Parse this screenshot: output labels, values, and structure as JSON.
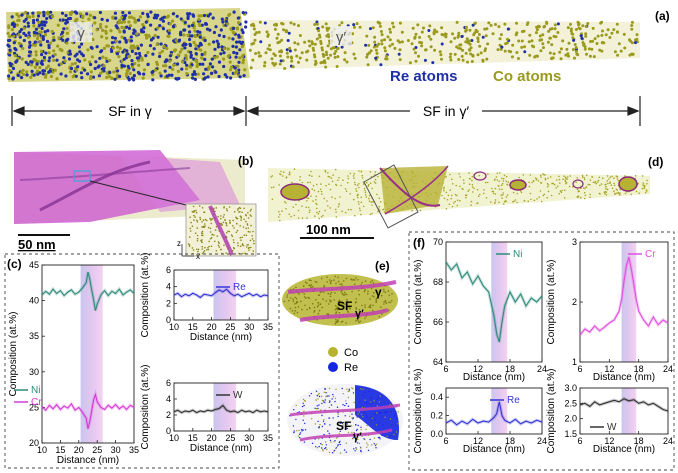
{
  "panel_labels": {
    "a": "(a)",
    "b": "(b)",
    "c": "(c)",
    "d": "(d)",
    "e": "(e)",
    "f": "(f)"
  },
  "panel_a": {
    "gamma_label": "γ",
    "gamma_prime_label": "γ′",
    "re_atoms_label": "Re atoms",
    "co_atoms_label": "Co atoms",
    "sf_gamma": "SF in γ",
    "sf_gamma_prime": "SF in γ′",
    "colors": {
      "re": "#1f2fa8",
      "co": "#9a9a1e"
    }
  },
  "panel_b": {
    "scale_bar": "50 nm",
    "axis_z": "z",
    "axis_x": "x"
  },
  "panel_d": {
    "scale_bar": "100 nm"
  },
  "panel_e": {
    "gamma": "γ",
    "sf": "SF",
    "gamma_prime": "γ′",
    "legend_co": "Co",
    "legend_re": "Re",
    "colors": {
      "co": "#9a9a1e",
      "re": "#1426e0",
      "sf": "#c13fb4"
    }
  },
  "chart_data": [
    {
      "id": "c-left",
      "type": "line",
      "xlabel": "Distance (nm)",
      "ylabel": "Composition (at.%)",
      "xlim": [
        10,
        35
      ],
      "ylim": [
        20,
        45
      ],
      "xticks": [
        10,
        15,
        20,
        25,
        30,
        35
      ],
      "yticks": [
        20,
        25,
        30,
        35,
        40,
        45
      ],
      "band": [
        20.5,
        26.5
      ],
      "series": [
        {
          "name": "Ni",
          "color": "#2e8b7a",
          "x": [
            10,
            11,
            12,
            13,
            14,
            15,
            16,
            17,
            18,
            19,
            20,
            21,
            22,
            22.5,
            23,
            23.5,
            24,
            24.5,
            25,
            26,
            27,
            28,
            29,
            30,
            31,
            32,
            33,
            34,
            35
          ],
          "y": [
            40.8,
            41.3,
            40.9,
            41.6,
            41.0,
            41.4,
            40.7,
            41.2,
            41.5,
            40.9,
            41.2,
            41.8,
            42.5,
            44.0,
            43.0,
            41.5,
            40.2,
            38.6,
            39.5,
            40.8,
            41.4,
            40.7,
            41.3,
            41.0,
            41.6,
            40.8,
            41.2,
            41.5,
            41.0
          ]
        },
        {
          "name": "Cr",
          "color": "#d63ad6",
          "x": [
            10,
            11,
            12,
            13,
            14,
            15,
            16,
            17,
            18,
            19,
            20,
            21,
            22,
            22.5,
            23,
            23.5,
            24,
            24.5,
            25,
            26,
            27,
            28,
            29,
            30,
            31,
            32,
            33,
            34,
            35
          ],
          "y": [
            25.1,
            24.6,
            25.3,
            24.8,
            25.4,
            24.7,
            25.2,
            24.9,
            25.5,
            24.6,
            25.0,
            24.3,
            23.5,
            22.0,
            23.0,
            24.5,
            26.0,
            26.8,
            25.8,
            25.0,
            24.7,
            25.3,
            24.9,
            25.4,
            24.8,
            25.2,
            24.7,
            25.3,
            25.0
          ]
        }
      ]
    },
    {
      "id": "c-re",
      "type": "line",
      "xlabel": "Distance (nm)",
      "ylabel": "Composition (at.%)",
      "xlim": [
        10,
        35
      ],
      "ylim": [
        0,
        6
      ],
      "xticks": [
        10,
        15,
        20,
        25,
        30,
        35
      ],
      "yticks": [
        0,
        2,
        4,
        6
      ],
      "band": [
        20.5,
        26.5
      ],
      "series": [
        {
          "name": "Re",
          "color": "#3636d6",
          "x": [
            10,
            11,
            12,
            13,
            14,
            15,
            16,
            17,
            18,
            19,
            20,
            21,
            22,
            23,
            24,
            25,
            26,
            27,
            28,
            29,
            30,
            31,
            32,
            33,
            34,
            35
          ],
          "y": [
            3.0,
            3.2,
            2.8,
            3.1,
            2.9,
            3.2,
            3.0,
            2.7,
            3.1,
            3.0,
            2.9,
            3.3,
            3.6,
            3.4,
            3.7,
            3.2,
            2.9,
            3.1,
            2.8,
            3.0,
            3.2,
            2.9,
            3.1,
            2.8,
            3.0,
            2.9
          ]
        }
      ]
    },
    {
      "id": "c-w",
      "type": "line",
      "xlabel": "Distance (nm)",
      "ylabel": "Composition (at.%)",
      "xlim": [
        10,
        35
      ],
      "ylim": [
        0,
        6
      ],
      "xticks": [
        10,
        15,
        20,
        25,
        30,
        35
      ],
      "yticks": [
        0,
        2,
        4,
        6
      ],
      "band": [
        20.5,
        26.5
      ],
      "series": [
        {
          "name": "W",
          "color": "#333333",
          "x": [
            10,
            11,
            12,
            13,
            14,
            15,
            16,
            17,
            18,
            19,
            20,
            21,
            22,
            23,
            24,
            25,
            26,
            27,
            28,
            29,
            30,
            31,
            32,
            33,
            34,
            35
          ],
          "y": [
            2.4,
            2.6,
            2.3,
            2.5,
            2.4,
            2.6,
            2.3,
            2.5,
            2.4,
            2.6,
            2.5,
            2.7,
            2.8,
            3.2,
            2.6,
            2.4,
            2.5,
            2.3,
            2.6,
            2.4,
            2.5,
            2.3,
            2.6,
            2.4,
            2.5,
            2.4
          ]
        }
      ]
    },
    {
      "id": "f-ni",
      "type": "line",
      "xlabel": "Distance (nm)",
      "ylabel": "Composition (at.%)",
      "xlim": [
        6,
        24
      ],
      "ylim": [
        64,
        70
      ],
      "xticks": [
        6,
        12,
        18,
        24
      ],
      "yticks": [
        64,
        66,
        68,
        70
      ],
      "band": [
        14.5,
        17.5
      ],
      "series": [
        {
          "name": "Ni",
          "color": "#2e8b7a",
          "x": [
            6,
            7,
            8,
            9,
            10,
            11,
            12,
            13,
            14,
            14.5,
            15,
            15.5,
            16,
            16.5,
            17,
            18,
            19,
            20,
            21,
            22,
            23,
            24
          ],
          "y": [
            69.0,
            68.6,
            68.9,
            68.2,
            68.5,
            67.9,
            68.3,
            67.8,
            67.5,
            66.9,
            66.3,
            65.4,
            65.0,
            66.0,
            66.8,
            67.5,
            67.0,
            67.4,
            66.8,
            67.2,
            67.0,
            67.3
          ]
        }
      ]
    },
    {
      "id": "f-cr",
      "type": "line",
      "xlabel": "Distance (nm)",
      "ylabel": "Composition (at.%)",
      "xlim": [
        6,
        24
      ],
      "ylim": [
        1,
        3
      ],
      "xticks": [
        6,
        12,
        18,
        24
      ],
      "yticks": [
        1,
        2,
        3
      ],
      "band": [
        14.5,
        17.5
      ],
      "series": [
        {
          "name": "Cr",
          "color": "#e04fe0",
          "x": [
            6,
            7,
            8,
            9,
            10,
            11,
            12,
            13,
            14,
            14.5,
            15,
            15.5,
            16,
            16.5,
            17,
            17.5,
            18,
            19,
            20,
            21,
            22,
            23,
            24
          ],
          "y": [
            1.45,
            1.55,
            1.5,
            1.6,
            1.52,
            1.58,
            1.65,
            1.7,
            1.85,
            2.05,
            2.35,
            2.6,
            2.75,
            2.55,
            2.3,
            2.05,
            1.85,
            1.7,
            1.6,
            1.75,
            1.62,
            1.7,
            1.65
          ]
        }
      ]
    },
    {
      "id": "f-re",
      "type": "line",
      "xlabel": "Distance (nm)",
      "ylabel": "Composition (at.%)",
      "xlim": [
        6,
        24
      ],
      "ylim": [
        0,
        0.5
      ],
      "xticks": [
        6,
        12,
        18,
        24
      ],
      "yticks": [
        0.0,
        0.2,
        0.4
      ],
      "band": [
        14.5,
        17.5
      ],
      "series": [
        {
          "name": "Re",
          "color": "#3636d6",
          "x": [
            6,
            7,
            8,
            9,
            10,
            11,
            12,
            13,
            14,
            15,
            15.5,
            16,
            16.5,
            17,
            18,
            19,
            20,
            21,
            22,
            23,
            24
          ],
          "y": [
            0.12,
            0.15,
            0.1,
            0.14,
            0.11,
            0.16,
            0.12,
            0.14,
            0.13,
            0.18,
            0.22,
            0.35,
            0.2,
            0.15,
            0.12,
            0.16,
            0.11,
            0.14,
            0.12,
            0.15,
            0.13
          ]
        }
      ]
    },
    {
      "id": "f-w",
      "type": "line",
      "xlabel": "Distance (nm)",
      "ylabel": "Composition (at.%)",
      "xlim": [
        6,
        24
      ],
      "ylim": [
        1.5,
        3.0
      ],
      "xticks": [
        6,
        12,
        18,
        24
      ],
      "yticks": [
        1.5,
        2.0,
        2.5,
        3.0
      ],
      "band": [
        14.5,
        17.5
      ],
      "series": [
        {
          "name": "W",
          "color": "#333333",
          "x": [
            6,
            7,
            8,
            9,
            10,
            11,
            12,
            13,
            14,
            15,
            16,
            17,
            18,
            19,
            20,
            21,
            22,
            23,
            24
          ],
          "y": [
            2.45,
            2.5,
            2.4,
            2.55,
            2.45,
            2.5,
            2.55,
            2.6,
            2.55,
            2.65,
            2.58,
            2.62,
            2.5,
            2.55,
            2.45,
            2.5,
            2.4,
            2.3,
            2.25
          ]
        }
      ]
    }
  ]
}
